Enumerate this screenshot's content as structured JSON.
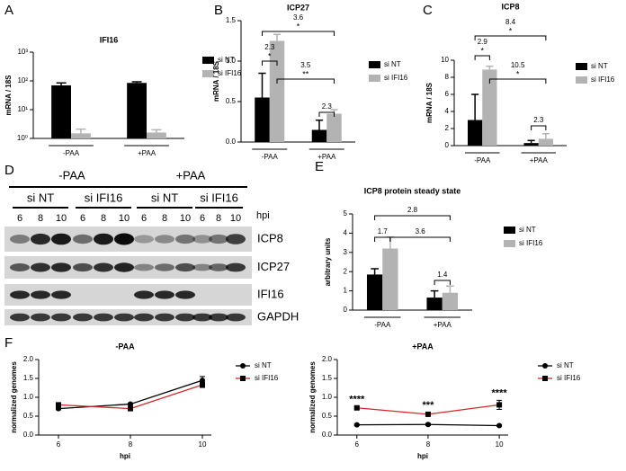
{
  "chart_data": [
    {
      "panel": "A",
      "type": "bar",
      "title": "IFI16",
      "ylabel": "mRNA / 18S",
      "log_scale": true,
      "categories": [
        "-PAA",
        "+PAA"
      ],
      "series": [
        {
          "name": "si NT",
          "color": "#000000",
          "values": [
            70,
            85
          ],
          "errors": [
            15,
            8
          ]
        },
        {
          "name": "si IFI16",
          "color": "#b3b3b3",
          "values": [
            1.5,
            1.6
          ],
          "errors": [
            0.6,
            0.4
          ]
        }
      ],
      "ylim": [
        1,
        1000
      ],
      "yticks": [
        {
          "value": 1,
          "label": "10⁰"
        },
        {
          "value": 10,
          "label": "10¹"
        },
        {
          "value": 100,
          "label": "10²"
        },
        {
          "value": 1000,
          "label": "10³"
        }
      ]
    },
    {
      "panel": "B",
      "type": "bar",
      "title": "ICP27",
      "ylabel": "mRNA / 18S",
      "categories": [
        "-PAA",
        "+PAA"
      ],
      "series": [
        {
          "name": "si NT",
          "color": "#000000",
          "values": [
            0.55,
            0.15
          ],
          "errors": [
            0.3,
            0.12
          ]
        },
        {
          "name": "si IFI16",
          "color": "#b3b3b3",
          "values": [
            1.25,
            0.35
          ],
          "errors": [
            0.08,
            0.05
          ]
        }
      ],
      "ylim": [
        0,
        1.5
      ],
      "yticks": [
        {
          "value": 0,
          "label": "0.0"
        },
        0.5,
        {
          "value": 1,
          "label": "1.0"
        },
        1.5
      ],
      "comparisons": [
        {
          "label": "3.6",
          "stars": "*"
        },
        {
          "label": "2.3",
          "stars": "*"
        },
        {
          "label": "3.5",
          "stars": "**"
        },
        {
          "label": "2.3"
        }
      ]
    },
    {
      "panel": "C",
      "type": "bar",
      "title": "ICP8",
      "ylabel": "mRNA / 18S",
      "categories": [
        "-PAA",
        "+PAA"
      ],
      "series": [
        {
          "name": "si NT",
          "color": "#000000",
          "values": [
            3.0,
            0.3
          ],
          "errors": [
            3.0,
            0.3
          ]
        },
        {
          "name": "si IFI16",
          "color": "#b3b3b3",
          "values": [
            8.9,
            0.8
          ],
          "errors": [
            0.4,
            0.6
          ]
        }
      ],
      "ylim": [
        0,
        10
      ],
      "yticks": [
        0,
        2,
        4,
        6,
        8,
        10
      ],
      "comparisons": [
        {
          "label": "8.4",
          "stars": "*"
        },
        {
          "label": "2.9",
          "stars": "*"
        },
        {
          "label": "10.5",
          "stars": "*"
        },
        {
          "label": "2.3"
        }
      ]
    },
    {
      "panel": "E",
      "type": "bar",
      "title": "ICP8 protein steady state",
      "ylabel": "arbitrary units",
      "categories": [
        "-PAA",
        "+PAA"
      ],
      "series": [
        {
          "name": "si NT",
          "color": "#000000",
          "values": [
            1.85,
            0.65
          ],
          "errors": [
            0.3,
            0.35
          ]
        },
        {
          "name": "si IFI16",
          "color": "#b3b3b3",
          "values": [
            3.2,
            0.9
          ],
          "errors": [
            0.6,
            0.35
          ]
        }
      ],
      "ylim": [
        0,
        5
      ],
      "yticks": [
        0,
        1,
        2,
        3,
        4,
        5
      ],
      "comparisons": [
        {
          "label": "2.8"
        },
        {
          "label": "1.7"
        },
        {
          "label": "3.6"
        },
        {
          "label": "1.4"
        }
      ]
    },
    {
      "panel": "F",
      "type": "line",
      "title": "-PAA",
      "ylabel": "normalized genomes",
      "xlabel": "hpi",
      "x": [
        6,
        8,
        10
      ],
      "xlim": [
        5.45,
        10.25
      ],
      "xticks": [
        6,
        8,
        10
      ],
      "series": [
        {
          "name": "si NT",
          "color": "#000000",
          "marker": "circle",
          "values": [
            0.7,
            0.82,
            1.45
          ],
          "errors": [
            0.03,
            0.03,
            0.1
          ]
        },
        {
          "name": "si IFI16",
          "color": "#d62728",
          "marker": "square",
          "values": [
            0.8,
            0.7,
            1.33
          ],
          "errors": [
            0.05,
            0.05,
            0.07
          ]
        }
      ],
      "ylim": [
        0,
        2
      ],
      "yticks": [
        {
          "value": 0,
          "label": "0.0"
        },
        0.5,
        {
          "value": 1,
          "label": "1.0"
        },
        1.5,
        {
          "value": 2,
          "label": "2.0"
        }
      ]
    },
    {
      "type": "line",
      "title": "+PAA",
      "ylabel": "normalized genomes",
      "xlabel": "hpi",
      "x": [
        6,
        8,
        10
      ],
      "xlim": [
        5.45,
        10.25
      ],
      "xticks": [
        6,
        8,
        10
      ],
      "series": [
        {
          "name": "si NT",
          "color": "#000000",
          "marker": "circle",
          "values": [
            0.27,
            0.28,
            0.25
          ],
          "errors": [
            0.02,
            0.03,
            0.02
          ]
        },
        {
          "name": "si IFI16",
          "color": "#d62728",
          "marker": "square",
          "values": [
            0.72,
            0.55,
            0.8
          ],
          "errors": [
            0.03,
            0.04,
            0.12
          ]
        }
      ],
      "annotations": [
        "****",
        "***",
        "****"
      ],
      "ylim": [
        0,
        2
      ],
      "yticks": [
        {
          "value": 0,
          "label": "0.0"
        },
        0.5,
        {
          "value": 1,
          "label": "1.0"
        },
        1.5,
        {
          "value": 2,
          "label": "2.0"
        }
      ]
    }
  ],
  "blot": {
    "panel": "D",
    "treatments": [
      "-PAA",
      "+PAA"
    ],
    "groups": [
      "si NT",
      "si IFI16",
      "si NT",
      "si IFI16"
    ],
    "timepoints": [
      "6",
      "8",
      "10"
    ],
    "time_label": "hpi",
    "proteins": [
      "ICP8",
      "ICP27",
      "IFI16",
      "GAPDH"
    ]
  }
}
